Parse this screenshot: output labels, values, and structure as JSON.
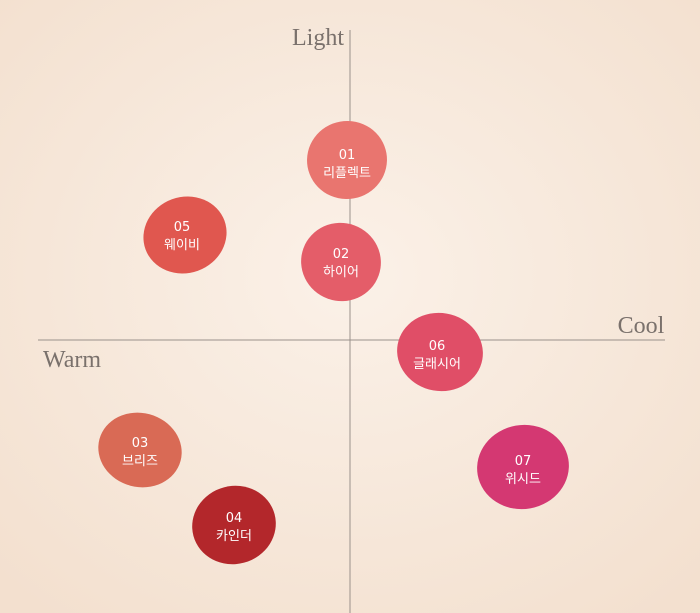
{
  "axes": {
    "top": "Light",
    "right": "Cool",
    "left": "Warm"
  },
  "swatches": [
    {
      "number": "01",
      "name": "리플렉트"
    },
    {
      "number": "02",
      "name": "하이어"
    },
    {
      "number": "03",
      "name": "브리즈"
    },
    {
      "number": "04",
      "name": "카인더"
    },
    {
      "number": "05",
      "name": "웨이비"
    },
    {
      "number": "06",
      "name": "글래시어"
    },
    {
      "number": "07",
      "name": "위시드"
    }
  ]
}
